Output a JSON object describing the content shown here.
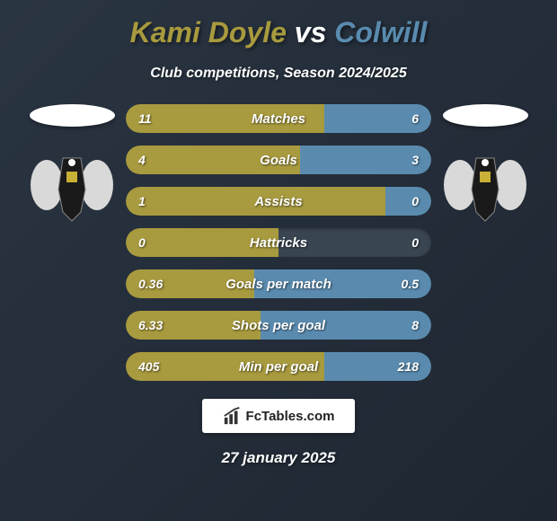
{
  "title": {
    "player1": "Kami Doyle",
    "vs": "vs",
    "player2": "Colwill"
  },
  "subtitle": "Club competitions, Season 2024/2025",
  "colors": {
    "player1": "#a89a3e",
    "player2": "#5a8baf",
    "bar_bg": "#3a4552",
    "background_start": "#2a3542",
    "background_end": "#1e2631"
  },
  "stats": [
    {
      "label": "Matches",
      "left_value": "11",
      "right_value": "6",
      "left_pct": 65,
      "right_pct": 35
    },
    {
      "label": "Goals",
      "left_value": "4",
      "right_value": "3",
      "left_pct": 57,
      "right_pct": 43
    },
    {
      "label": "Assists",
      "left_value": "1",
      "right_value": "0",
      "left_pct": 85,
      "right_pct": 15
    },
    {
      "label": "Hattricks",
      "left_value": "0",
      "right_value": "0",
      "left_pct": 50,
      "right_pct": 0
    },
    {
      "label": "Goals per match",
      "left_value": "0.36",
      "right_value": "0.5",
      "left_pct": 42,
      "right_pct": 58
    },
    {
      "label": "Shots per goal",
      "left_value": "6.33",
      "right_value": "8",
      "left_pct": 44,
      "right_pct": 56
    },
    {
      "label": "Min per goal",
      "left_value": "405",
      "right_value": "218",
      "left_pct": 65,
      "right_pct": 35
    }
  ],
  "branding": {
    "text": "FcTables.com"
  },
  "date": "27 january 2025"
}
